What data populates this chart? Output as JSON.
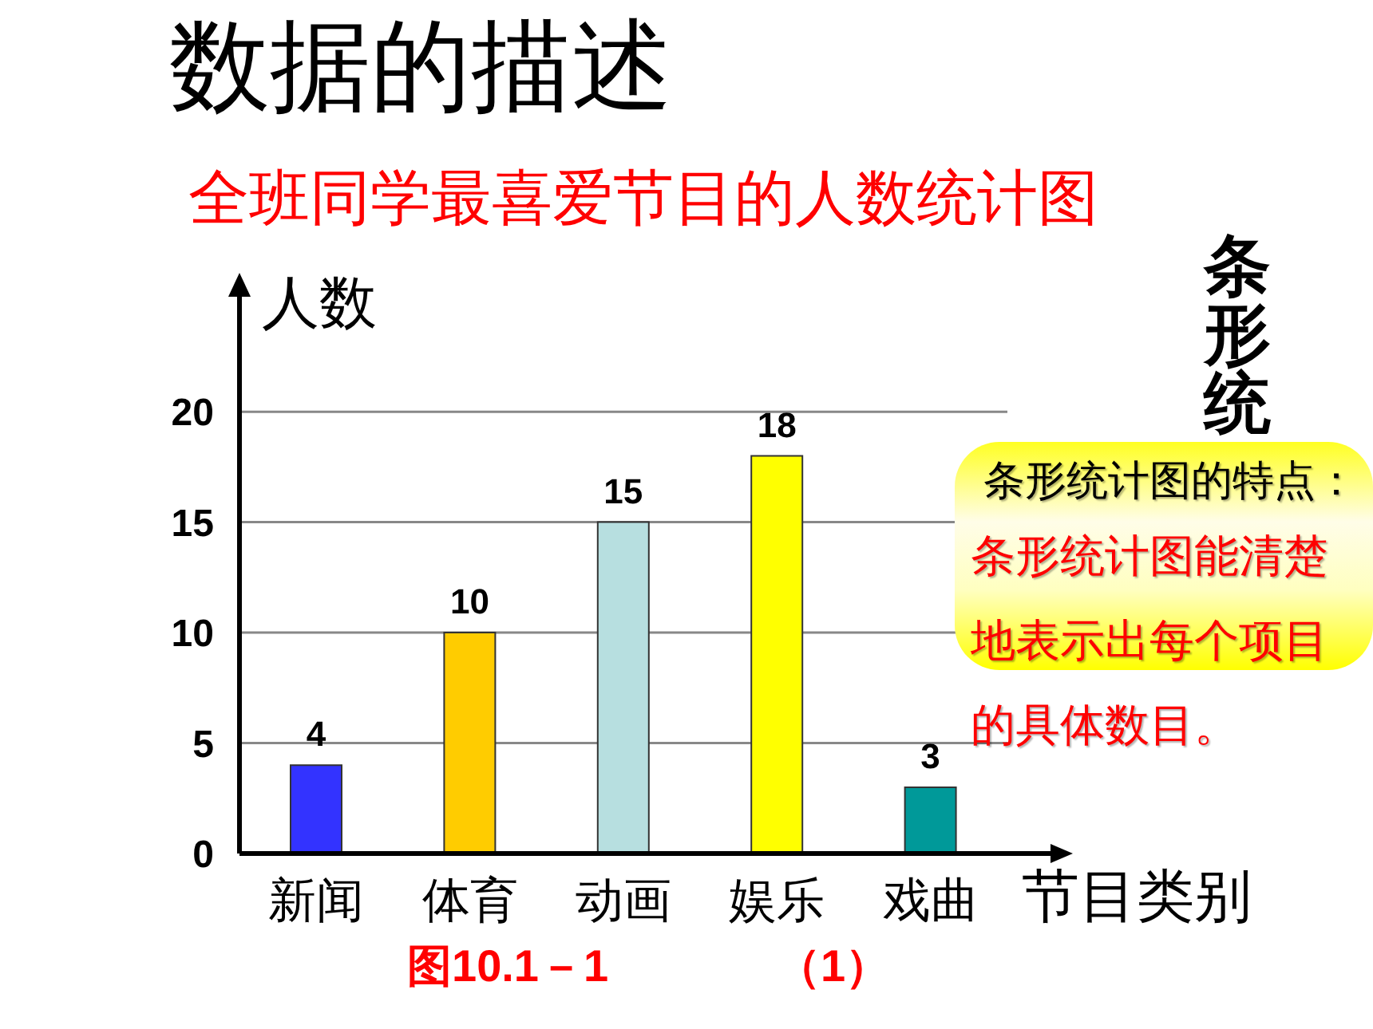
{
  "chart_data": {
    "type": "bar",
    "title": "数据的描述",
    "subtitle": "全班同学最喜爱节目的人数统计图",
    "xlabel": "节目类别",
    "ylabel": "人数",
    "categories": [
      "新闻",
      "体育",
      "动画",
      "娱乐",
      "戏曲"
    ],
    "values": [
      4,
      10,
      15,
      18,
      3
    ],
    "colors": [
      "#3333ff",
      "#ffcc00",
      "#b7dfe0",
      "#ffff00",
      "#009999"
    ],
    "ylim": [
      0,
      26
    ],
    "yticks": [
      0,
      5,
      10,
      15,
      20
    ],
    "grid": "y",
    "data_labels": true,
    "annotations": [
      "条形统",
      "条形统计图的特点：",
      "条形统计图能清楚地表示出每个项目的具体数目。",
      "图10.1－1",
      "（1）"
    ]
  }
}
